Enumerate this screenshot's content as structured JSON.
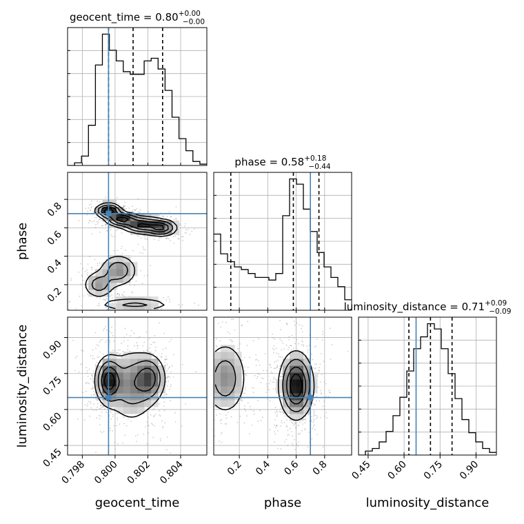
{
  "chart_data": {
    "type": "corner",
    "parameters": [
      "geocent_time",
      "phase",
      "luminosity_distance"
    ],
    "truths": {
      "geocent_time": 0.7996,
      "phase": 0.7,
      "luminosity_distance": 0.65
    },
    "titles": [
      {
        "param": "geocent_time",
        "prefix": "geocent_time = 0.80",
        "sup": "+0.00",
        "sub": "−0.00"
      },
      {
        "param": "phase",
        "prefix": "phase = 0.58",
        "sup": "+0.18",
        "sub": "−0.44"
      },
      {
        "param": "luminosity_distance",
        "prefix": "luminosity_distance = 0.71",
        "sup": "+0.09",
        "sub": "−0.09"
      }
    ],
    "ranges": {
      "geocent_time": [
        0.7971,
        0.8056
      ],
      "phase": [
        0.02,
        0.99
      ],
      "luminosity_distance": [
        0.41,
        0.985
      ]
    },
    "ticks": {
      "geocent_time": [
        "0.798",
        "0.800",
        "0.802",
        "0.804"
      ],
      "phase": [
        "0.2",
        "0.4",
        "0.6",
        "0.8"
      ],
      "luminosity_distance": [
        "0.45",
        "0.60",
        "0.75",
        "0.90"
      ]
    },
    "quantiles": {
      "geocent_time": [
        0.7996,
        0.8011,
        0.8029
      ],
      "phase": [
        0.14,
        0.58,
        0.76
      ],
      "luminosity_distance": [
        0.62,
        0.71,
        0.8
      ]
    },
    "histograms": {
      "geocent_time": {
        "edges": [
          0.7971,
          0.797525,
          0.79795,
          0.798375,
          0.7988,
          0.799225,
          0.79965,
          0.800075,
          0.8005,
          0.800925,
          0.80135,
          0.801775,
          0.8022,
          0.802625,
          0.80305,
          0.803475,
          0.8039,
          0.804325,
          0.80475,
          0.805175,
          0.8056
        ],
        "counts": [
          0,
          2,
          7,
          30,
          75,
          98,
          86,
          78,
          70,
          68,
          68,
          78,
          80,
          72,
          56,
          36,
          20,
          11,
          3,
          1
        ]
      },
      "phase": {
        "edges": [
          0.02,
          0.0685,
          0.117,
          0.1655,
          0.214,
          0.2625,
          0.311,
          0.3595,
          0.408,
          0.4565,
          0.505,
          0.5535,
          0.602,
          0.6505,
          0.699,
          0.7475,
          0.796,
          0.8445,
          0.893,
          0.9415,
          0.99
        ],
        "counts": [
          58,
          43,
          37,
          33,
          31,
          28,
          25,
          25,
          23,
          28,
          72,
          100,
          96,
          77,
          60,
          44,
          33,
          25,
          18,
          8
        ]
      },
      "luminosity_distance": {
        "edges": [
          0.41,
          0.43875,
          0.4675,
          0.49625,
          0.525,
          0.55375,
          0.5825,
          0.61125,
          0.64,
          0.66875,
          0.6975,
          0.72625,
          0.755,
          0.78375,
          0.8125,
          0.84125,
          0.87,
          0.89875,
          0.9275,
          0.95625,
          0.985
        ],
        "counts": [
          0,
          3,
          5,
          10,
          18,
          30,
          44,
          64,
          81,
          90,
          100,
          96,
          81,
          62,
          43,
          27,
          17,
          10,
          5,
          2
        ]
      }
    },
    "density_modes": {
      "geocent_time_vs_phase": {
        "description": "bimodal banded posterior",
        "modes": [
          {
            "x": 0.7996,
            "y": 0.72,
            "sx": 0.0004,
            "sy": 0.025,
            "w": 1.0
          },
          {
            "x": 0.8004,
            "y": 0.66,
            "sx": 0.0005,
            "sy": 0.025,
            "w": 0.9
          },
          {
            "x": 0.8016,
            "y": 0.62,
            "sx": 0.0006,
            "sy": 0.03,
            "w": 0.8
          },
          {
            "x": 0.8028,
            "y": 0.6,
            "sx": 0.0005,
            "sy": 0.03,
            "w": 0.8
          },
          {
            "x": 0.8002,
            "y": 0.3,
            "sx": 0.0006,
            "sy": 0.06,
            "w": 0.45
          },
          {
            "x": 0.799,
            "y": 0.2,
            "sx": 0.0005,
            "sy": 0.05,
            "w": 0.4
          },
          {
            "x": 0.8012,
            "y": 0.06,
            "sx": 0.0012,
            "sy": 0.025,
            "w": 0.35
          }
        ]
      },
      "geocent_time_vs_luminosity_distance": {
        "modes": [
          {
            "x": 0.7996,
            "y": 0.72,
            "sx": 0.0004,
            "sy": 0.05,
            "w": 1.0
          },
          {
            "x": 0.8021,
            "y": 0.73,
            "sx": 0.0005,
            "sy": 0.05,
            "w": 0.65
          },
          {
            "x": 0.801,
            "y": 0.7,
            "sx": 0.0008,
            "sy": 0.08,
            "w": 0.5
          }
        ]
      },
      "phase_vs_luminosity_distance": {
        "modes": [
          {
            "x": 0.6,
            "y": 0.7,
            "sx": 0.06,
            "sy": 0.07,
            "w": 1.0
          },
          {
            "x": 0.1,
            "y": 0.73,
            "sx": 0.08,
            "sy": 0.08,
            "w": 0.45
          }
        ]
      }
    },
    "colors": {
      "truth": "#4682b4",
      "grid": "#b0b0b0",
      "scatter": "#909090",
      "lines": "#000000"
    }
  }
}
